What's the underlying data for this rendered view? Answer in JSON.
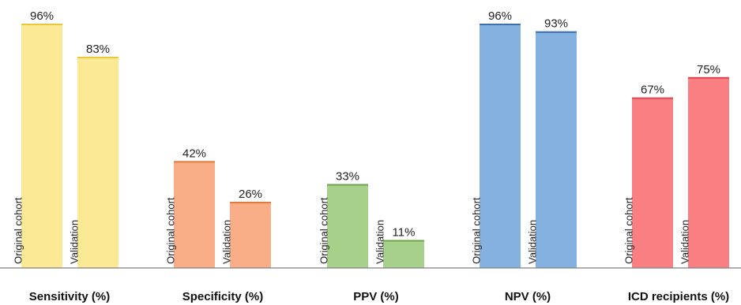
{
  "chart_data": {
    "type": "bar",
    "categories": [
      "Sensitivity (%)",
      "Specificity (%)",
      "PPV (%)",
      "NPV (%)",
      "ICD recipients (%)"
    ],
    "series": [
      {
        "name": "Original cohort",
        "values": [
          96,
          42,
          33,
          96,
          67
        ]
      },
      {
        "name": "Validation",
        "values": [
          83,
          26,
          11,
          93,
          75
        ]
      }
    ],
    "value_labels": [
      [
        "96%",
        "83%"
      ],
      [
        "42%",
        "26%"
      ],
      [
        "33%",
        "11%"
      ],
      [
        "96%",
        "93%"
      ],
      [
        "67%",
        "75%"
      ]
    ],
    "colors": [
      {
        "fill": "#fce996",
        "stroke": "#e9c73a"
      },
      {
        "fill": "#f9ae88",
        "stroke": "#e57a3c"
      },
      {
        "fill": "#a7d18b",
        "stroke": "#6fa34e"
      },
      {
        "fill": "#84b1e0",
        "stroke": "#3f6fb0"
      },
      {
        "fill": "#f97f83",
        "stroke": "#e04550"
      }
    ],
    "ylim": [
      0,
      100
    ],
    "grid": false,
    "legend": "none"
  }
}
